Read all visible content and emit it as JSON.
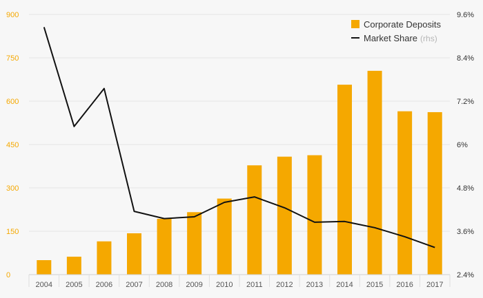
{
  "chart_data": {
    "type": "bar",
    "categories": [
      "2004",
      "2005",
      "2006",
      "2007",
      "2008",
      "2009",
      "2010",
      "2011",
      "2012",
      "2013",
      "2014",
      "2015",
      "2016",
      "2017"
    ],
    "series": [
      {
        "name": "Corporate Deposits",
        "type": "bar",
        "axis": "left",
        "color": "#f5a800",
        "values": [
          50,
          62,
          115,
          143,
          193,
          216,
          263,
          378,
          408,
          413,
          657,
          705,
          565,
          562
        ]
      },
      {
        "name": "Market Share",
        "suffix": "(rhs)",
        "type": "line",
        "axis": "right",
        "color": "#111111",
        "values": [
          9.25,
          6.5,
          7.55,
          4.15,
          3.95,
          4.0,
          4.4,
          4.55,
          4.25,
          3.85,
          3.87,
          3.7,
          3.45,
          3.15
        ]
      }
    ],
    "y_left": {
      "range": [
        0,
        900
      ],
      "ticks": [
        0,
        150,
        300,
        450,
        600,
        750,
        900
      ],
      "tick_labels": [
        "0",
        "150",
        "300",
        "450",
        "600",
        "750",
        "900"
      ],
      "color": "#f5a800"
    },
    "y_right": {
      "range": [
        2.4,
        9.6
      ],
      "ticks": [
        2.4,
        3.6,
        4.8,
        6.0,
        7.2,
        8.4,
        9.6
      ],
      "tick_labels": [
        "2.4%",
        "3.6%",
        "4.8%",
        "6%",
        "7.2%",
        "8.4%",
        "9.6%"
      ]
    },
    "legend_position": "top-right",
    "grid": true
  }
}
